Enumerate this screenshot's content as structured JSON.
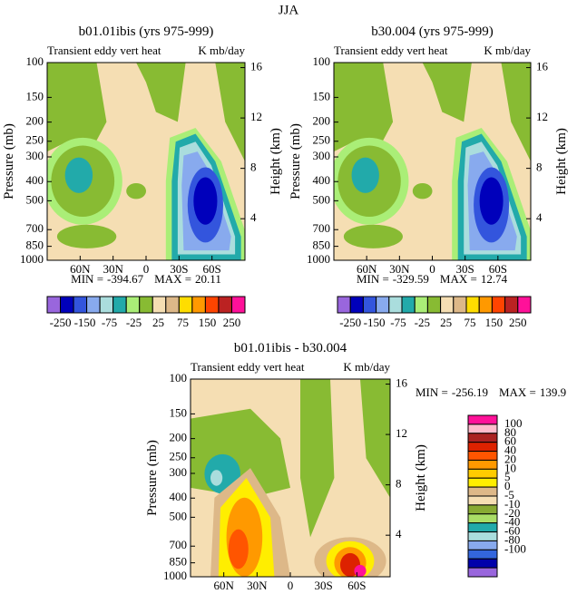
{
  "title": "JJA",
  "panels": [
    {
      "title": "b01.01ibis  (yrs 975-999)",
      "subtitle": "Transient eddy vert heat",
      "units": "K mb/day",
      "ylabel": "Pressure (mb)",
      "y2label": "Height (km)",
      "ylim": [
        1000,
        100
      ],
      "yticks": [
        100,
        150,
        200,
        250,
        300,
        400,
        500,
        700,
        850,
        1000
      ],
      "y2lim": [
        0.7,
        16.4
      ],
      "y2ticks": [
        4,
        8,
        12,
        16
      ],
      "xlim": [
        90,
        -90
      ],
      "xticks": [
        {
          "value": 60,
          "label": "60N"
        },
        {
          "value": 30,
          "label": "30N"
        },
        0,
        {
          "value": -30,
          "label": "30S"
        },
        {
          "value": -60,
          "label": "60S"
        }
      ],
      "min_label": "MIN =",
      "min": -394.67,
      "max_label": "MAX =",
      "max": 20.11
    },
    {
      "title": "b30.004  (yrs 975-999)",
      "subtitle": "Transient eddy vert heat",
      "units": "K mb/day",
      "ylabel": "Pressure (mb)",
      "y2label": "Height (km)",
      "ylim": [
        1000,
        100
      ],
      "yticks": [
        100,
        150,
        200,
        250,
        300,
        400,
        500,
        700,
        850,
        1000
      ],
      "y2lim": [
        0.7,
        16.4
      ],
      "y2ticks": [
        4,
        8,
        12,
        16
      ],
      "xlim": [
        90,
        -90
      ],
      "xticks": [
        {
          "value": 60,
          "label": "60N"
        },
        {
          "value": 30,
          "label": "30N"
        },
        0,
        {
          "value": -30,
          "label": "30S"
        },
        {
          "value": -60,
          "label": "60S"
        }
      ],
      "min_label": "MIN =",
      "min": -329.59,
      "max_label": "MAX =",
      "max": 12.74
    },
    {
      "title": "b01.01ibis - b30.004",
      "subtitle": "Transient eddy vert heat",
      "units": "K mb/day",
      "ylabel": "Pressure (mb)",
      "y2label": "Height (km)",
      "ylim": [
        1000,
        100
      ],
      "yticks": [
        100,
        150,
        200,
        250,
        300,
        400,
        500,
        700,
        850,
        1000
      ],
      "y2lim": [
        0.7,
        16.4
      ],
      "y2ticks": [
        4,
        8,
        12,
        16
      ],
      "xlim": [
        90,
        -90
      ],
      "xticks": [
        {
          "value": 60,
          "label": "60N"
        },
        {
          "value": 30,
          "label": "30N"
        },
        0,
        {
          "value": -30,
          "label": "30S"
        },
        {
          "value": -60,
          "label": "60S"
        }
      ],
      "min_label": "MIN =",
      "min": -256.19,
      "max_label": "MAX =",
      "max": 139.9
    }
  ],
  "colorbar_top": {
    "colors": [
      "#9966dd",
      "#0000bb",
      "#3355dd",
      "#88aaee",
      "#aadddd",
      "#22aaaa",
      "#aaee77",
      "#88bb33",
      "#f5deb3",
      "#ddb888",
      "#ffdd00",
      "#ff9900",
      "#ff4400",
      "#bb2222",
      "#ff1199"
    ],
    "labels": [
      -250,
      -150,
      -75,
      -25,
      25,
      75,
      150,
      250
    ]
  },
  "colorbar_diff": {
    "colors": [
      "#ff1199",
      "#ffbbcc",
      "#aa2222",
      "#dd2200",
      "#ff5500",
      "#ff9900",
      "#ffcc00",
      "#ffee00",
      "#ddb888",
      "#f5deb3",
      "#88aa33",
      "#aadd66",
      "#22aaaa",
      "#aadddd",
      "#88aaee",
      "#3366dd",
      "#0000aa",
      "#9966dd"
    ],
    "labels": [
      100,
      80,
      60,
      40,
      20,
      10,
      5,
      0,
      -5,
      -10,
      -20,
      -40,
      -60,
      -80,
      -100
    ]
  }
}
